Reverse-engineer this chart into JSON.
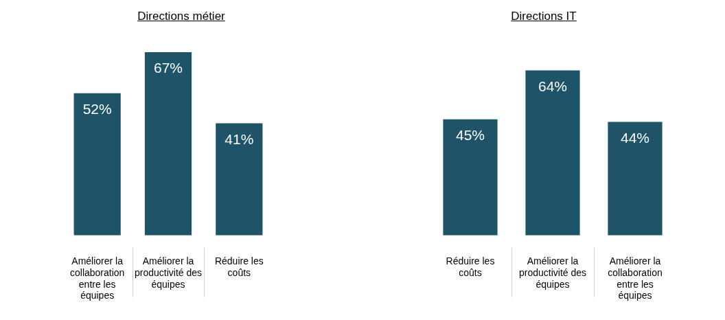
{
  "chart_data": [
    {
      "type": "bar",
      "title": "Directions métier",
      "categories": [
        "Améliorer la collaboration entre les équipes",
        "Améliorer la productivité des équipes",
        "Réduire les coûts"
      ],
      "values": [
        52,
        67,
        41
      ],
      "value_labels": [
        "52%",
        "67%",
        "41%"
      ],
      "color": "#1f5468"
    },
    {
      "type": "bar",
      "title": "Directions IT",
      "categories": [
        "Réduire les coûts",
        "Améliorer la productivité des équipes",
        "Améliorer la collaboration entre les équipes"
      ],
      "values": [
        45,
        64,
        44
      ],
      "value_labels": [
        "45%",
        "64%",
        "44%"
      ],
      "color": "#1f5468"
    }
  ]
}
